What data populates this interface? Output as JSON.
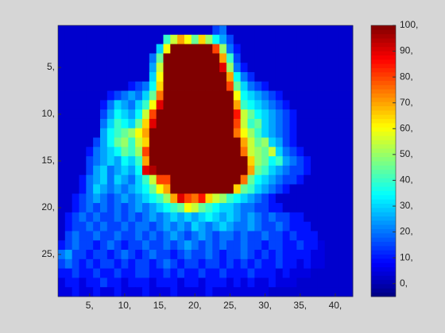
{
  "chart_data": {
    "type": "heatmap",
    "colormap": "jet",
    "xlim": [
      0.5,
      42.5
    ],
    "ylim": [
      0.5,
      29.5
    ],
    "clim": [
      -5,
      100
    ],
    "xticks": [
      {
        "value": 5,
        "label": "5,"
      },
      {
        "value": 10,
        "label": "10,"
      },
      {
        "value": 15,
        "label": "15,"
      },
      {
        "value": 20,
        "label": "20,"
      },
      {
        "value": 25,
        "label": "25,"
      },
      {
        "value": 30,
        "label": "30,"
      },
      {
        "value": 35,
        "label": "35,"
      },
      {
        "value": 40,
        "label": "40,"
      }
    ],
    "yticks": [
      {
        "value": 5,
        "label": "5,"
      },
      {
        "value": 10,
        "label": "10,"
      },
      {
        "value": 15,
        "label": "15,"
      },
      {
        "value": 20,
        "label": "20,"
      },
      {
        "value": 25,
        "label": "25,"
      }
    ],
    "cticks": [
      {
        "value": 0,
        "label": "0,"
      },
      {
        "value": 10,
        "label": "10,"
      },
      {
        "value": 20,
        "label": "20,"
      },
      {
        "value": 30,
        "label": "30,"
      },
      {
        "value": 40,
        "label": "40,"
      },
      {
        "value": 50,
        "label": "50,"
      },
      {
        "value": 60,
        "label": "60,"
      },
      {
        "value": 70,
        "label": "70,"
      },
      {
        "value": 80,
        "label": "80,"
      },
      {
        "value": 90,
        "label": "90,"
      },
      {
        "value": 100,
        "label": "100,"
      }
    ],
    "z": [
      [
        3,
        3,
        3,
        3,
        3,
        3,
        3,
        3,
        3,
        3,
        3,
        3,
        3,
        3,
        3,
        3,
        3,
        3,
        3,
        3,
        3,
        3,
        15,
        20,
        3,
        3,
        3,
        3,
        3,
        3,
        3,
        3,
        3,
        3,
        3,
        3,
        3,
        3,
        3,
        3,
        3,
        3
      ],
      [
        3,
        3,
        3,
        3,
        3,
        3,
        3,
        3,
        3,
        3,
        3,
        3,
        3,
        3,
        3,
        40,
        55,
        70,
        60,
        45,
        65,
        50,
        35,
        25,
        15,
        3,
        3,
        3,
        3,
        3,
        3,
        3,
        3,
        3,
        3,
        3,
        3,
        3,
        3,
        3,
        3,
        3
      ],
      [
        3,
        3,
        3,
        3,
        3,
        3,
        3,
        3,
        3,
        3,
        3,
        3,
        3,
        3,
        30,
        60,
        100,
        100,
        100,
        100,
        100,
        100,
        80,
        50,
        20,
        10,
        3,
        3,
        3,
        3,
        3,
        3,
        3,
        3,
        3,
        3,
        3,
        3,
        3,
        3,
        3,
        3
      ],
      [
        3,
        3,
        3,
        3,
        3,
        3,
        3,
        3,
        3,
        3,
        3,
        3,
        3,
        20,
        45,
        100,
        100,
        100,
        100,
        100,
        100,
        100,
        100,
        70,
        40,
        15,
        3,
        3,
        3,
        3,
        3,
        3,
        3,
        3,
        3,
        3,
        3,
        3,
        3,
        3,
        3,
        3
      ],
      [
        3,
        3,
        3,
        3,
        3,
        3,
        3,
        3,
        3,
        3,
        3,
        3,
        3,
        25,
        55,
        100,
        100,
        100,
        100,
        100,
        100,
        100,
        100,
        90,
        50,
        20,
        10,
        3,
        3,
        3,
        3,
        3,
        3,
        3,
        3,
        3,
        3,
        3,
        3,
        3,
        3,
        3
      ],
      [
        3,
        3,
        3,
        3,
        3,
        3,
        3,
        3,
        3,
        3,
        3,
        3,
        3,
        30,
        60,
        100,
        100,
        100,
        100,
        100,
        100,
        100,
        100,
        100,
        70,
        35,
        20,
        12,
        3,
        3,
        3,
        3,
        3,
        3,
        3,
        3,
        3,
        3,
        3,
        3,
        3,
        3
      ],
      [
        3,
        3,
        3,
        3,
        3,
        3,
        3,
        3,
        3,
        3,
        10,
        15,
        20,
        35,
        65,
        100,
        100,
        100,
        100,
        100,
        100,
        100,
        100,
        100,
        80,
        45,
        30,
        20,
        15,
        10,
        3,
        3,
        3,
        3,
        3,
        3,
        3,
        3,
        3,
        3,
        3,
        3
      ],
      [
        3,
        3,
        3,
        3,
        3,
        3,
        3,
        10,
        15,
        20,
        25,
        20,
        30,
        45,
        75,
        100,
        100,
        100,
        100,
        100,
        100,
        100,
        100,
        100,
        100,
        60,
        35,
        30,
        25,
        20,
        15,
        10,
        3,
        3,
        3,
        3,
        3,
        3,
        3,
        3,
        3,
        3
      ],
      [
        3,
        3,
        3,
        3,
        3,
        3,
        10,
        20,
        30,
        25,
        20,
        30,
        40,
        60,
        90,
        100,
        100,
        100,
        100,
        100,
        100,
        100,
        100,
        100,
        100,
        70,
        40,
        35,
        30,
        25,
        20,
        15,
        10,
        3,
        3,
        3,
        3,
        3,
        3,
        3,
        3,
        3
      ],
      [
        3,
        3,
        3,
        3,
        3,
        3,
        15,
        25,
        35,
        30,
        25,
        35,
        55,
        80,
        100,
        100,
        100,
        100,
        100,
        100,
        100,
        100,
        100,
        100,
        100,
        85,
        55,
        45,
        35,
        30,
        25,
        20,
        15,
        10,
        3,
        3,
        3,
        3,
        3,
        3,
        3,
        3
      ],
      [
        3,
        3,
        3,
        3,
        3,
        3,
        20,
        30,
        40,
        35,
        30,
        45,
        65,
        90,
        100,
        100,
        100,
        100,
        100,
        100,
        100,
        100,
        100,
        100,
        100,
        80,
        55,
        40,
        45,
        30,
        25,
        20,
        15,
        10,
        3,
        3,
        3,
        3,
        3,
        3,
        3,
        3
      ],
      [
        3,
        3,
        3,
        3,
        3,
        3,
        25,
        35,
        40,
        45,
        50,
        60,
        70,
        100,
        100,
        100,
        100,
        100,
        100,
        100,
        100,
        100,
        100,
        100,
        100,
        75,
        60,
        50,
        40,
        30,
        25,
        20,
        15,
        10,
        3,
        3,
        3,
        3,
        3,
        3,
        3,
        3
      ],
      [
        3,
        3,
        3,
        3,
        3,
        15,
        25,
        35,
        45,
        50,
        40,
        55,
        65,
        100,
        100,
        100,
        100,
        100,
        100,
        100,
        100,
        100,
        100,
        100,
        100,
        100,
        70,
        55,
        45,
        50,
        30,
        25,
        15,
        10,
        3,
        3,
        3,
        3,
        3,
        3,
        3,
        3
      ],
      [
        3,
        3,
        3,
        3,
        10,
        20,
        25,
        30,
        35,
        45,
        40,
        50,
        80,
        100,
        100,
        100,
        100,
        100,
        100,
        100,
        100,
        100,
        100,
        100,
        100,
        100,
        75,
        55,
        50,
        45,
        55,
        30,
        20,
        15,
        10,
        3,
        3,
        3,
        3,
        3,
        3,
        3
      ],
      [
        3,
        3,
        3,
        3,
        15,
        20,
        25,
        30,
        25,
        35,
        30,
        40,
        70,
        100,
        100,
        100,
        100,
        100,
        100,
        100,
        100,
        100,
        100,
        100,
        100,
        100,
        100,
        65,
        50,
        45,
        35,
        40,
        25,
        20,
        15,
        10,
        3,
        3,
        3,
        3,
        3,
        3
      ],
      [
        3,
        3,
        3,
        3,
        15,
        25,
        30,
        20,
        25,
        30,
        25,
        35,
        90,
        95,
        100,
        100,
        100,
        100,
        100,
        100,
        100,
        100,
        100,
        100,
        100,
        100,
        100,
        70,
        45,
        40,
        30,
        25,
        20,
        15,
        15,
        10,
        3,
        3,
        3,
        3,
        3,
        3
      ],
      [
        3,
        3,
        3,
        10,
        20,
        25,
        30,
        20,
        30,
        25,
        20,
        30,
        40,
        55,
        80,
        80,
        100,
        100,
        100,
        100,
        100,
        100,
        100,
        100,
        100,
        100,
        75,
        45,
        35,
        30,
        25,
        20,
        15,
        15,
        10,
        3,
        3,
        3,
        3,
        3,
        3,
        3
      ],
      [
        3,
        3,
        3,
        10,
        20,
        30,
        25,
        20,
        25,
        20,
        25,
        30,
        35,
        45,
        60,
        70,
        100,
        100,
        100,
        100,
        100,
        100,
        100,
        100,
        100,
        65,
        45,
        40,
        30,
        25,
        20,
        15,
        10,
        3,
        3,
        3,
        3,
        3,
        3,
        3,
        3,
        3
      ],
      [
        3,
        3,
        10,
        15,
        20,
        25,
        20,
        15,
        20,
        25,
        20,
        25,
        30,
        35,
        40,
        50,
        70,
        90,
        80,
        75,
        85,
        65,
        55,
        50,
        40,
        35,
        30,
        25,
        20,
        15,
        10,
        3,
        3,
        3,
        3,
        3,
        3,
        3,
        3,
        3,
        3,
        3
      ],
      [
        3,
        3,
        10,
        15,
        20,
        15,
        20,
        15,
        20,
        15,
        20,
        25,
        20,
        25,
        30,
        35,
        40,
        45,
        60,
        55,
        45,
        40,
        35,
        30,
        30,
        25,
        20,
        20,
        15,
        15,
        10,
        10,
        3,
        3,
        3,
        3,
        3,
        3,
        3,
        3,
        3,
        3
      ],
      [
        3,
        10,
        15,
        20,
        15,
        20,
        15,
        15,
        20,
        15,
        20,
        15,
        20,
        25,
        20,
        25,
        30,
        25,
        30,
        25,
        30,
        35,
        30,
        25,
        30,
        25,
        20,
        25,
        20,
        15,
        20,
        15,
        15,
        10,
        10,
        3,
        3,
        3,
        3,
        3,
        3,
        3
      ],
      [
        3,
        10,
        15,
        15,
        20,
        15,
        20,
        15,
        15,
        20,
        15,
        20,
        20,
        15,
        20,
        25,
        20,
        25,
        20,
        30,
        25,
        20,
        25,
        30,
        25,
        20,
        20,
        25,
        20,
        15,
        15,
        20,
        15,
        10,
        10,
        10,
        3,
        3,
        3,
        3,
        3,
        3
      ],
      [
        3,
        15,
        20,
        15,
        15,
        20,
        15,
        15,
        20,
        15,
        15,
        20,
        15,
        20,
        15,
        20,
        25,
        20,
        15,
        20,
        25,
        20,
        15,
        20,
        20,
        15,
        20,
        15,
        15,
        20,
        15,
        15,
        10,
        15,
        10,
        10,
        10,
        3,
        3,
        3,
        3,
        3
      ],
      [
        10,
        15,
        20,
        15,
        15,
        10,
        15,
        20,
        15,
        10,
        15,
        15,
        20,
        15,
        15,
        20,
        15,
        20,
        25,
        20,
        15,
        20,
        15,
        20,
        15,
        15,
        20,
        15,
        15,
        10,
        15,
        15,
        10,
        10,
        15,
        10,
        10,
        5,
        3,
        3,
        3,
        3
      ],
      [
        20,
        25,
        15,
        15,
        10,
        15,
        15,
        10,
        15,
        20,
        15,
        10,
        15,
        20,
        15,
        15,
        10,
        15,
        20,
        15,
        15,
        20,
        15,
        10,
        15,
        15,
        20,
        15,
        10,
        15,
        10,
        15,
        10,
        10,
        10,
        10,
        5,
        5,
        3,
        3,
        3,
        3
      ],
      [
        15,
        20,
        15,
        10,
        15,
        10,
        15,
        15,
        10,
        15,
        10,
        15,
        15,
        10,
        15,
        20,
        15,
        10,
        15,
        15,
        10,
        15,
        15,
        10,
        15,
        10,
        15,
        10,
        15,
        10,
        10,
        15,
        10,
        10,
        5,
        10,
        5,
        5,
        3,
        3,
        3,
        3
      ],
      [
        10,
        10,
        15,
        10,
        10,
        15,
        10,
        10,
        15,
        10,
        10,
        15,
        15,
        10,
        10,
        15,
        10,
        15,
        10,
        10,
        15,
        10,
        10,
        15,
        10,
        10,
        10,
        15,
        10,
        10,
        10,
        5,
        10,
        5,
        5,
        5,
        3,
        3,
        3,
        3,
        3,
        3
      ],
      [
        5,
        10,
        10,
        5,
        10,
        10,
        15,
        10,
        10,
        5,
        10,
        10,
        10,
        5,
        10,
        10,
        10,
        5,
        10,
        10,
        5,
        10,
        10,
        10,
        5,
        10,
        5,
        10,
        5,
        5,
        10,
        5,
        5,
        5,
        3,
        3,
        3,
        3,
        3,
        3,
        3,
        3
      ],
      [
        5,
        5,
        10,
        5,
        5,
        10,
        5,
        5,
        10,
        5,
        5,
        5,
        10,
        5,
        5,
        5,
        10,
        5,
        5,
        5,
        5,
        10,
        5,
        5,
        5,
        5,
        5,
        5,
        5,
        5,
        3,
        3,
        3,
        3,
        3,
        3,
        3,
        3,
        3,
        3,
        3,
        3
      ]
    ]
  }
}
